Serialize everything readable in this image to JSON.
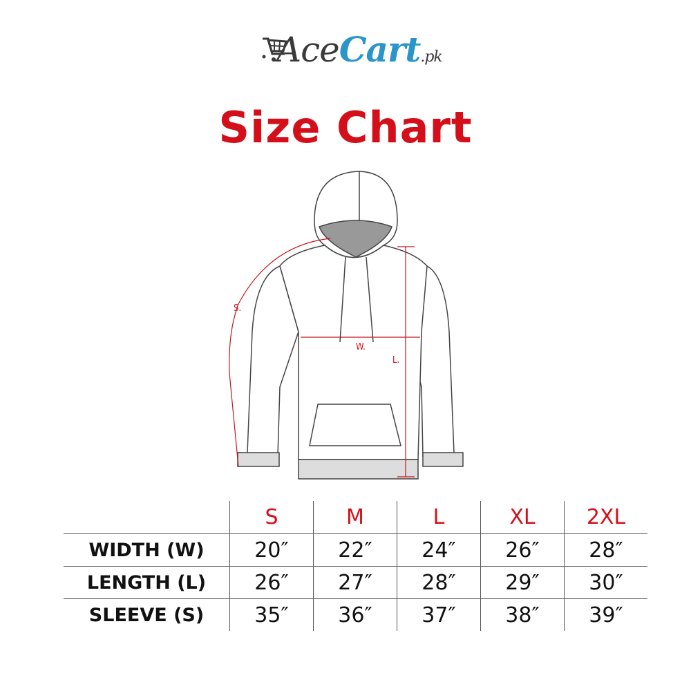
{
  "logo": {
    "part1": "Ace",
    "part2": "Cart",
    "suffix": ".pk",
    "brand_color": "#2a95c9"
  },
  "title": "Size Chart",
  "accent_color": "#d50f1a",
  "diagram": {
    "sleeve_label": "S.",
    "width_label": "W.",
    "length_label": "L."
  },
  "table": {
    "sizes": [
      "S",
      "M",
      "L",
      "XL",
      "2XL"
    ],
    "rows": [
      {
        "label": "WIDTH (W)",
        "values": [
          "20″",
          "22″",
          "24″",
          "26″",
          "28″"
        ]
      },
      {
        "label": "LENGTH (L)",
        "values": [
          "26″",
          "27″",
          "28″",
          "29″",
          "30″"
        ]
      },
      {
        "label": "SLEEVE (S)",
        "values": [
          "35″",
          "36″",
          "37″",
          "38″",
          "39″"
        ]
      }
    ]
  }
}
